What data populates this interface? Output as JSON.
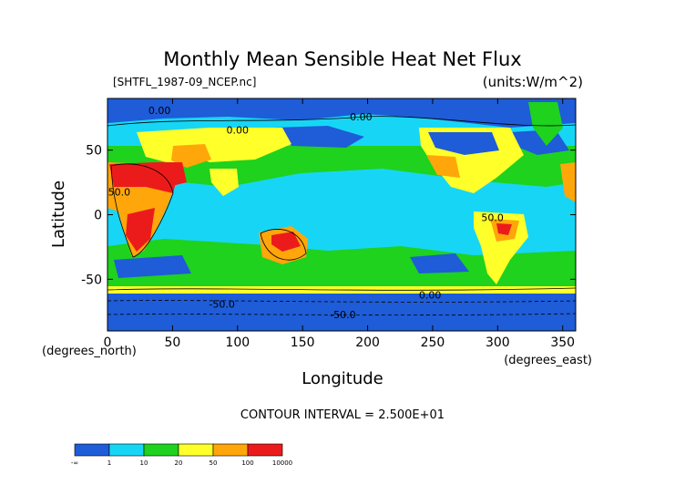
{
  "chart_data": {
    "type": "heatmap",
    "title": "Monthly Mean Sensible Heat Net Flux",
    "file_label": "[SHTFL_1987-09_NCEP.nc]",
    "units_label": "(units:W/m^2)",
    "xlabel": "Longitude",
    "ylabel": "Latitude",
    "x_unit_label": "(degrees_east)",
    "y_unit_label": "(degrees_north)",
    "xlim": [
      0,
      360
    ],
    "ylim": [
      -90,
      90
    ],
    "x_ticks": [
      0,
      50,
      100,
      150,
      200,
      250,
      300,
      350
    ],
    "y_ticks": [
      50,
      0,
      -50
    ],
    "contour_interval_text": "CONTOUR INTERVAL = 2.500E+01",
    "contour_labels": [
      {
        "text": "0.00",
        "x": 40,
        "y": 78
      },
      {
        "text": "0.00",
        "x": 195,
        "y": 73
      },
      {
        "text": "0.00",
        "x": 100,
        "y": 63
      },
      {
        "text": "50.0",
        "x": 9,
        "y": 15
      },
      {
        "text": "50.0",
        "x": 296,
        "y": -5
      },
      {
        "text": "0.00",
        "x": 248,
        "y": -65
      },
      {
        "text": "-50.0",
        "x": 88,
        "y": -72
      },
      {
        "text": "-50.0",
        "x": 181,
        "y": -80
      }
    ],
    "legend": {
      "bins": [
        {
          "label": "-∞",
          "color": "#1e5cd8"
        },
        {
          "label": "1",
          "color": "#17d6f5"
        },
        {
          "label": "10",
          "color": "#1ed21e"
        },
        {
          "label": "20",
          "color": "#ffff2a"
        },
        {
          "label": "50",
          "color": "#ffa60a"
        },
        {
          "label": "100",
          "color": "#ec1b1b"
        },
        {
          "label": "10000",
          "color": ""
        }
      ]
    }
  }
}
